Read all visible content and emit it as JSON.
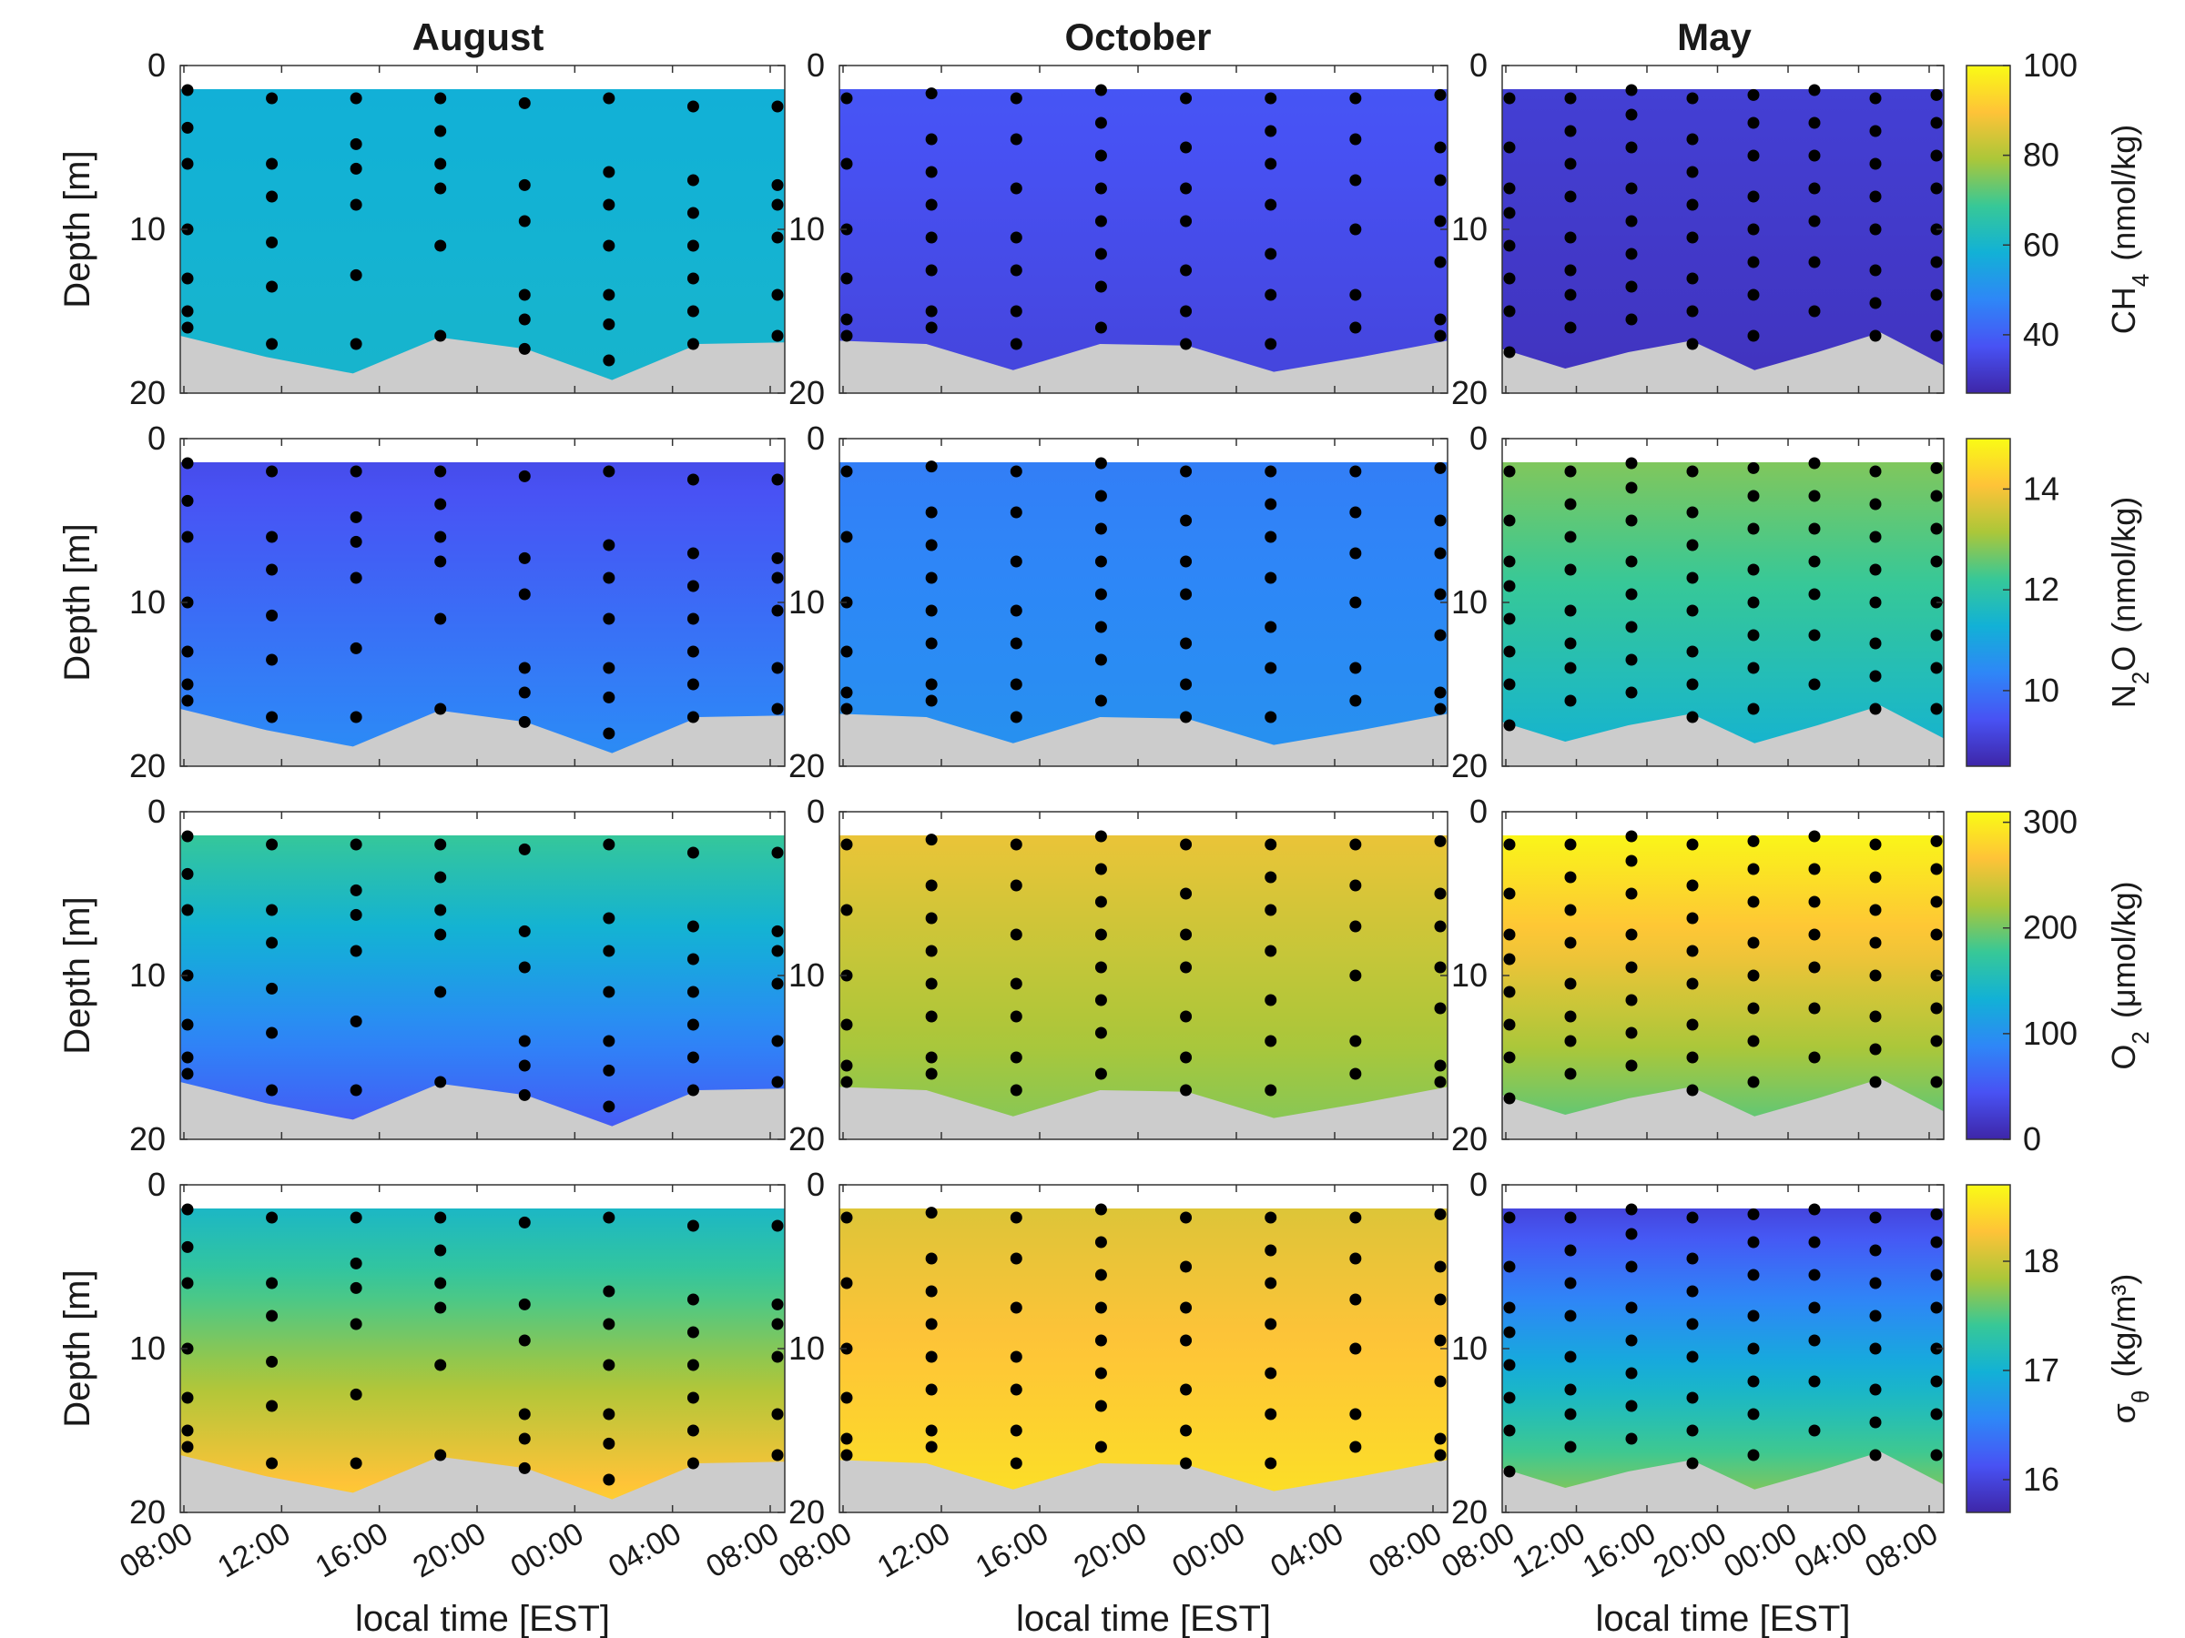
{
  "figure": {
    "columns": [
      {
        "title": "August",
        "times": [
          "08:00",
          "12:00",
          "16:00",
          "20:00",
          "00:00",
          "04:00",
          "08:00"
        ],
        "xlabel": "local time [EST]"
      },
      {
        "title": "October",
        "times": [
          "08:00",
          "12:00",
          "16:00",
          "20:00",
          "00:00",
          "04:00",
          "08:00"
        ],
        "xlabel": "local time [EST]"
      },
      {
        "title": "May",
        "times": [
          "08:00",
          "12:00",
          "16:00",
          "20:00",
          "00:00",
          "04:00",
          "08:00"
        ],
        "xlabel": "local time [EST]"
      }
    ],
    "ylabel": "Depth [m]",
    "depth_ticks": [
      "0",
      "10",
      "20"
    ]
  },
  "chart_data": {
    "type": "heatmap",
    "columns": [
      "August",
      "October",
      "May"
    ],
    "rows": [
      {
        "variable": "CH4",
        "label_main": "CH",
        "label_sub": "4",
        "units": "(nmol/kg)",
        "range": [
          27,
          100
        ],
        "ticks": [
          40,
          60,
          80,
          100
        ],
        "fields": [
          {
            "column": "August",
            "base": 58,
            "gradient": 2
          },
          {
            "column": "October",
            "base": 38,
            "gradient": -4
          },
          {
            "column": "May",
            "base": 33,
            "gradient": -3
          }
        ]
      },
      {
        "variable": "N2O",
        "label_main": "N",
        "label_sub": "2",
        "label_tail": "O",
        "units": "(nmol/kg)",
        "range": [
          8.5,
          15
        ],
        "ticks": [
          10,
          12,
          14
        ],
        "fields": [
          {
            "column": "August",
            "base": 9.3,
            "gradient": 1.2
          },
          {
            "column": "October",
            "base": 10.2,
            "gradient": 0.4
          },
          {
            "column": "May",
            "base": 12.8,
            "gradient": -1.5
          }
        ]
      },
      {
        "variable": "O2",
        "label_main": "O",
        "label_sub": "2",
        "units": "(μmol/kg)",
        "range": [
          0,
          310
        ],
        "ticks": [
          0,
          100,
          200,
          300
        ],
        "fields": [
          {
            "column": "August",
            "base": 175,
            "gradient": -130
          },
          {
            "column": "October",
            "base": 255,
            "gradient": -50
          },
          {
            "column": "May",
            "base": 305,
            "gradient": -120
          }
        ]
      },
      {
        "variable": "sigma_theta",
        "label_main": "σ",
        "label_sub": "θ",
        "units": "(kg/m³)",
        "range": [
          15.7,
          18.7
        ],
        "ticks": [
          16,
          17,
          18
        ],
        "fields": [
          {
            "column": "August",
            "base": 17.1,
            "gradient": 1.3
          },
          {
            "column": "October",
            "base": 18.1,
            "gradient": 0.4
          },
          {
            "column": "May",
            "base": 16.0,
            "gradient": 1.8
          }
        ]
      }
    ],
    "depth_range": [
      0,
      20
    ],
    "seafloor_depth": {
      "August": [
        16.5,
        17.8,
        18.8,
        16.6,
        17.3,
        19.2,
        17.0,
        16.9
      ],
      "October": [
        16.8,
        17.0,
        18.6,
        17.0,
        17.1,
        18.7,
        17.8,
        16.8
      ],
      "May": [
        17.3,
        18.5,
        17.5,
        16.8,
        18.6,
        17.5,
        16.3,
        18.3
      ]
    },
    "sample_profiles": {
      "August": [
        [
          1.5,
          3.8,
          6,
          10,
          13,
          15,
          16
        ],
        [
          2,
          6,
          8,
          10.8,
          13.5,
          17
        ],
        [
          2,
          4.8,
          6.3,
          8.5,
          12.8,
          17
        ],
        [
          2,
          4,
          6,
          7.5,
          11,
          16.5
        ],
        [
          2.3,
          7.3,
          9.5,
          14,
          15.5,
          17.3
        ],
        [
          2,
          6.5,
          8.5,
          11,
          14,
          15.8,
          18
        ],
        [
          2.5,
          7,
          9,
          11,
          13,
          15,
          17
        ],
        [
          2.5,
          7.3,
          8.5,
          10.5,
          14,
          16.5
        ]
      ],
      "October": [
        [
          2,
          6,
          10,
          13,
          15.5,
          16.5
        ],
        [
          1.7,
          4.5,
          6.5,
          8.5,
          10.5,
          12.5,
          15,
          16
        ],
        [
          2,
          4.5,
          7.5,
          10.5,
          12.5,
          15,
          17
        ],
        [
          1.5,
          3.5,
          5.5,
          7.5,
          9.5,
          11.5,
          13.5,
          16
        ],
        [
          2,
          5,
          7.5,
          9.5,
          12.5,
          15,
          17
        ],
        [
          2,
          4,
          6,
          8.5,
          11.5,
          14,
          17
        ],
        [
          2,
          4.5,
          7,
          10,
          14,
          16
        ],
        [
          1.8,
          5,
          7,
          9.5,
          12,
          15.5,
          16.5
        ]
      ],
      "May": [
        [
          2,
          5,
          7.5,
          9,
          11,
          13,
          15,
          17.5
        ],
        [
          2,
          4,
          6,
          8,
          10.5,
          12.5,
          14,
          16
        ],
        [
          1.5,
          3,
          5,
          7.5,
          9.5,
          11.5,
          13.5,
          15.5
        ],
        [
          2,
          4.5,
          6.5,
          8.5,
          10.5,
          13,
          15,
          17
        ],
        [
          1.8,
          3.5,
          5.5,
          8,
          10,
          12,
          14,
          16.5
        ],
        [
          1.5,
          3.5,
          5.5,
          7.5,
          9.5,
          12,
          15
        ],
        [
          2,
          4,
          6,
          8,
          10,
          12.5,
          14.5,
          16.5
        ],
        [
          1.8,
          3.5,
          5.5,
          7.5,
          10,
          12,
          14,
          16.5
        ]
      ]
    },
    "grid": false
  }
}
